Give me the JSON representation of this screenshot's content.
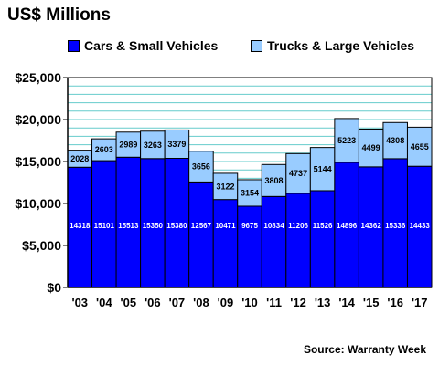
{
  "chart_data": {
    "type": "bar",
    "stacked": true,
    "title": "US$ Millions",
    "categories": [
      "'03",
      "'04",
      "'05",
      "'06",
      "'07",
      "'08",
      "'09",
      "'10",
      "'11",
      "'12",
      "'13",
      "'14",
      "'15",
      "'16",
      "'17"
    ],
    "series": [
      {
        "name": "Cars & Small Vehicles",
        "color": "#0000ff",
        "values": [
          14318,
          15101,
          15513,
          15350,
          15380,
          12567,
          10471,
          9675,
          10834,
          11206,
          11526,
          14896,
          14362,
          15336,
          14433
        ]
      },
      {
        "name": "Trucks & Large Vehicles",
        "color": "#99ccff",
        "values": [
          2028,
          2603,
          2989,
          3263,
          3379,
          3656,
          3122,
          3154,
          3808,
          4737,
          5144,
          5223,
          4499,
          4308,
          4655
        ]
      }
    ],
    "yticks": [
      "$0",
      "$5,000",
      "$10,000",
      "$15,000",
      "$20,000",
      "$25,000"
    ],
    "ylim": [
      0,
      25000
    ],
    "grid": true,
    "legend": "top",
    "source": "Source: Warranty Week"
  }
}
